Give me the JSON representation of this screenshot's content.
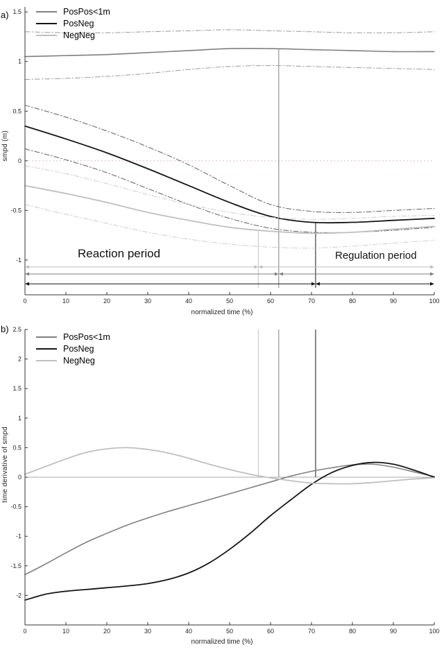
{
  "colors": {
    "pospos": "#7f7f7f",
    "posneg": "#141414",
    "negneg": "#bfbfbf",
    "pospos_ci": "#9a9a9a",
    "posneg_ci": "#5f5f5f",
    "negneg_ci": "#cdcdcd",
    "zero_dotted": "#d8c3c3",
    "zero_solid": "#a8a8a8",
    "axis": "#333333"
  },
  "panel_a": {
    "tag": "a)",
    "ylabel": "smpd (m)",
    "xlabel": "normalized time (%)",
    "legend": [
      "PosPos<1m",
      "PosNeg",
      "NegNeg"
    ],
    "annotations": {
      "reaction": "Reaction period",
      "regulation": "Regulation period"
    }
  },
  "panel_b": {
    "tag": "b)",
    "ylabel": "time derivative of smpd",
    "xlabel": "normalized time (%)",
    "legend": [
      "PosPos<1m",
      "PosNeg",
      "NegNeg"
    ]
  },
  "chart_data": [
    {
      "type": "line",
      "title": "",
      "xlabel": "normalized time (%)",
      "ylabel": "smpd (m)",
      "xlim": [
        0,
        100
      ],
      "ylim": [
        -1.35,
        1.55
      ],
      "xticks": [
        0,
        10,
        20,
        30,
        40,
        50,
        60,
        70,
        80,
        90,
        100
      ],
      "yticks": [
        -1,
        -0.5,
        0,
        0.5,
        1,
        1.5
      ],
      "grid": false,
      "legend_position": "top-left",
      "x": [
        0,
        10,
        20,
        30,
        40,
        50,
        60,
        70,
        80,
        90,
        100
      ],
      "series": [
        {
          "name": "PosPos<1m mean",
          "color": "pospos",
          "width": 1.6,
          "dash": null,
          "values": [
            1.05,
            1.06,
            1.07,
            1.09,
            1.11,
            1.13,
            1.13,
            1.12,
            1.11,
            1.1,
            1.1
          ]
        },
        {
          "name": "PosPos<1m upper CI",
          "color": "pospos_ci",
          "width": 1,
          "dash": "7 3 1.5 3",
          "values": [
            1.3,
            1.29,
            1.29,
            1.3,
            1.31,
            1.32,
            1.31,
            1.3,
            1.29,
            1.29,
            1.3
          ]
        },
        {
          "name": "PosPos<1m lower CI",
          "color": "pospos_ci",
          "width": 1,
          "dash": "7 3 1.5 3",
          "values": [
            0.82,
            0.83,
            0.85,
            0.88,
            0.92,
            0.95,
            0.96,
            0.95,
            0.94,
            0.93,
            0.92
          ]
        },
        {
          "name": "PosNeg mean",
          "color": "posneg",
          "width": 1.8,
          "dash": null,
          "values": [
            0.35,
            0.22,
            0.08,
            -0.08,
            -0.25,
            -0.42,
            -0.56,
            -0.62,
            -0.62,
            -0.6,
            -0.58
          ]
        },
        {
          "name": "PosNeg upper CI",
          "color": "posneg_ci",
          "width": 1,
          "dash": "7 3 1.5 3",
          "values": [
            0.56,
            0.44,
            0.3,
            0.14,
            -0.04,
            -0.25,
            -0.44,
            -0.51,
            -0.52,
            -0.5,
            -0.48
          ]
        },
        {
          "name": "PosNeg lower CI",
          "color": "posneg_ci",
          "width": 1,
          "dash": "7 3 1.5 3",
          "values": [
            0.12,
            0.01,
            -0.12,
            -0.28,
            -0.44,
            -0.58,
            -0.68,
            -0.72,
            -0.72,
            -0.7,
            -0.67
          ]
        },
        {
          "name": "NegNeg mean",
          "color": "negneg",
          "width": 1.8,
          "dash": null,
          "values": [
            -0.25,
            -0.33,
            -0.42,
            -0.52,
            -0.6,
            -0.67,
            -0.71,
            -0.73,
            -0.72,
            -0.69,
            -0.66
          ]
        },
        {
          "name": "NegNeg upper CI",
          "color": "negneg_ci",
          "width": 1,
          "dash": "7 3 1.5 3",
          "values": [
            -0.05,
            -0.13,
            -0.23,
            -0.34,
            -0.44,
            -0.52,
            -0.57,
            -0.59,
            -0.58,
            -0.56,
            -0.55
          ]
        },
        {
          "name": "NegNeg lower CI",
          "color": "negneg_ci",
          "width": 1,
          "dash": "7 3 1.5 3",
          "values": [
            -0.44,
            -0.54,
            -0.63,
            -0.72,
            -0.79,
            -0.84,
            -0.87,
            -0.88,
            -0.86,
            -0.83,
            -0.8
          ]
        }
      ],
      "hlines": [
        {
          "y": 0,
          "color": "zero_dotted",
          "dash": "2 3",
          "width": 1
        }
      ],
      "vlines": [
        {
          "x": 57,
          "y1": -1.28,
          "y2": -0.71,
          "color": "negneg",
          "width": 1
        },
        {
          "x": 62,
          "y1": -1.28,
          "y2": 1.13,
          "color": "pospos",
          "width": 1
        },
        {
          "x": 71,
          "y1": -1.28,
          "y2": -0.62,
          "color": "posneg",
          "width": 1
        }
      ],
      "arrows": [
        {
          "y": -1.07,
          "x1": 0,
          "x2": 57,
          "color": "negneg"
        },
        {
          "y": -1.07,
          "x1": 57,
          "x2": 100,
          "color": "negneg"
        },
        {
          "y": -1.14,
          "x1": 0,
          "x2": 62,
          "color": "pospos"
        },
        {
          "y": -1.14,
          "x1": 62,
          "x2": 100,
          "color": "pospos"
        },
        {
          "y": -1.24,
          "x1": 0,
          "x2": 71,
          "color": "posneg"
        },
        {
          "y": -1.24,
          "x1": 71,
          "x2": 100,
          "color": "posneg"
        }
      ]
    },
    {
      "type": "line",
      "title": "",
      "xlabel": "normalized time (%)",
      "ylabel": "time derivative of smpd",
      "xlim": [
        0,
        100
      ],
      "ylim": [
        -2.5,
        2.5
      ],
      "xticks": [
        0,
        10,
        20,
        30,
        40,
        50,
        60,
        70,
        80,
        90,
        100
      ],
      "yticks": [
        -2,
        -1.5,
        -1,
        -0.5,
        0,
        0.5,
        1,
        1.5,
        2,
        2.5
      ],
      "grid": false,
      "legend_position": "top-left",
      "x": [
        0,
        5,
        10,
        15,
        20,
        25,
        30,
        35,
        40,
        45,
        50,
        55,
        60,
        65,
        70,
        75,
        80,
        85,
        90,
        95,
        100
      ],
      "series": [
        {
          "name": "PosPos<1m",
          "color": "pospos",
          "width": 1.6,
          "dash": null,
          "values": [
            -1.65,
            -1.47,
            -1.28,
            -1.1,
            -0.95,
            -0.81,
            -0.69,
            -0.58,
            -0.48,
            -0.38,
            -0.28,
            -0.18,
            -0.08,
            0.02,
            0.1,
            0.16,
            0.21,
            0.22,
            0.17,
            0.09,
            0.01
          ]
        },
        {
          "name": "PosNeg",
          "color": "posneg",
          "width": 1.8,
          "dash": null,
          "values": [
            -2.08,
            -1.98,
            -1.93,
            -1.9,
            -1.87,
            -1.84,
            -1.8,
            -1.73,
            -1.62,
            -1.45,
            -1.22,
            -0.95,
            -0.65,
            -0.38,
            -0.12,
            0.08,
            0.2,
            0.25,
            0.22,
            0.12,
            0.0
          ]
        },
        {
          "name": "NegNeg",
          "color": "negneg",
          "width": 1.8,
          "dash": null,
          "values": [
            0.05,
            0.18,
            0.31,
            0.42,
            0.48,
            0.5,
            0.47,
            0.41,
            0.32,
            0.22,
            0.13,
            0.05,
            -0.01,
            -0.06,
            -0.1,
            -0.11,
            -0.11,
            -0.09,
            -0.06,
            -0.03,
            -0.01
          ]
        }
      ],
      "hlines": [
        {
          "y": 0,
          "color": "zero_solid",
          "dash": null,
          "width": 1
        }
      ],
      "vlines": [
        {
          "x": 57,
          "y1": 0,
          "y2": 2.5,
          "color": "negneg",
          "width": 1
        },
        {
          "x": 62,
          "y1": 0,
          "y2": 2.5,
          "color": "pospos",
          "width": 1
        },
        {
          "x": 71,
          "y1": 0,
          "y2": 2.5,
          "color": "posneg",
          "width": 1
        }
      ],
      "arrows": []
    }
  ]
}
